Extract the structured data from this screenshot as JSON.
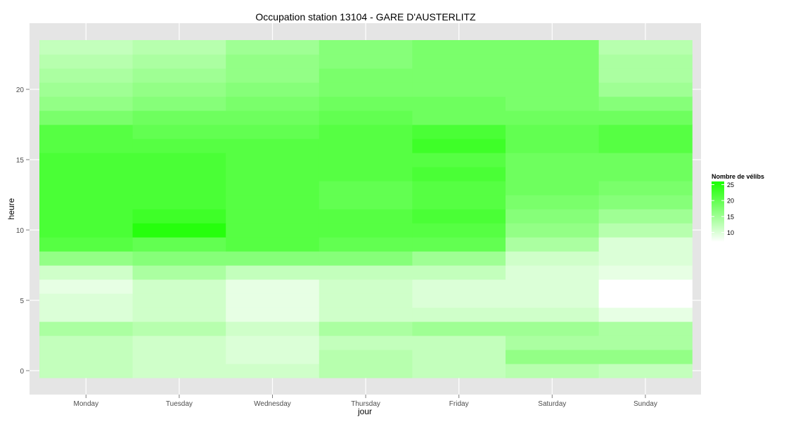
{
  "chart_data": {
    "type": "heatmap",
    "title": "Occupation station 13104 - GARE D'AUSTERLITZ",
    "xlabel": "jour",
    "ylabel": "heure",
    "x_categories": [
      "Monday",
      "Tuesday",
      "Wednesday",
      "Thursday",
      "Friday",
      "Saturday",
      "Sunday"
    ],
    "y_hours": [
      0,
      1,
      2,
      3,
      4,
      5,
      6,
      7,
      8,
      9,
      10,
      11,
      12,
      13,
      14,
      15,
      16,
      17,
      18,
      19,
      20,
      21,
      22,
      23
    ],
    "y_ticks": [
      0,
      5,
      10,
      15,
      20
    ],
    "ylim": [
      -0.5,
      23.5
    ],
    "grid": true,
    "legend": {
      "title": "Nombre de vélibs",
      "position": "right",
      "ticks": [
        10,
        15,
        20,
        25
      ],
      "min": 7,
      "max": 26,
      "low_color": "#ffffff",
      "high_color": "#1aff00"
    },
    "values": [
      [
        12,
        11,
        11,
        13,
        12,
        13,
        12
      ],
      [
        12,
        11,
        10,
        13,
        12,
        16,
        16
      ],
      [
        12,
        11,
        10,
        12,
        12,
        14,
        14
      ],
      [
        14,
        13,
        11,
        14,
        15,
        15,
        14
      ],
      [
        10,
        11,
        9,
        11,
        11,
        11,
        9
      ],
      [
        10,
        11,
        9,
        11,
        10,
        10,
        7
      ],
      [
        9,
        11,
        9,
        11,
        10,
        10,
        7
      ],
      [
        11,
        14,
        12,
        12,
        12,
        10,
        9
      ],
      [
        16,
        17,
        17,
        17,
        15,
        11,
        10
      ],
      [
        21,
        20,
        21,
        20,
        20,
        14,
        10
      ],
      [
        22,
        25,
        21,
        21,
        21,
        16,
        13
      ],
      [
        22,
        23,
        21,
        21,
        22,
        17,
        15
      ],
      [
        22,
        22,
        21,
        20,
        21,
        18,
        17
      ],
      [
        22,
        22,
        21,
        20,
        21,
        19,
        18
      ],
      [
        22,
        22,
        21,
        21,
        22,
        19,
        19
      ],
      [
        22,
        22,
        21,
        21,
        21,
        19,
        19
      ],
      [
        21,
        21,
        21,
        21,
        23,
        20,
        21
      ],
      [
        21,
        20,
        20,
        21,
        22,
        20,
        21
      ],
      [
        18,
        19,
        19,
        20,
        19,
        19,
        19
      ],
      [
        16,
        17,
        18,
        19,
        19,
        18,
        17
      ],
      [
        15,
        16,
        17,
        18,
        18,
        18,
        15
      ],
      [
        14,
        15,
        16,
        18,
        18,
        18,
        14
      ],
      [
        13,
        14,
        16,
        17,
        18,
        18,
        14
      ],
      [
        12,
        13,
        15,
        17,
        18,
        18,
        13
      ]
    ]
  }
}
